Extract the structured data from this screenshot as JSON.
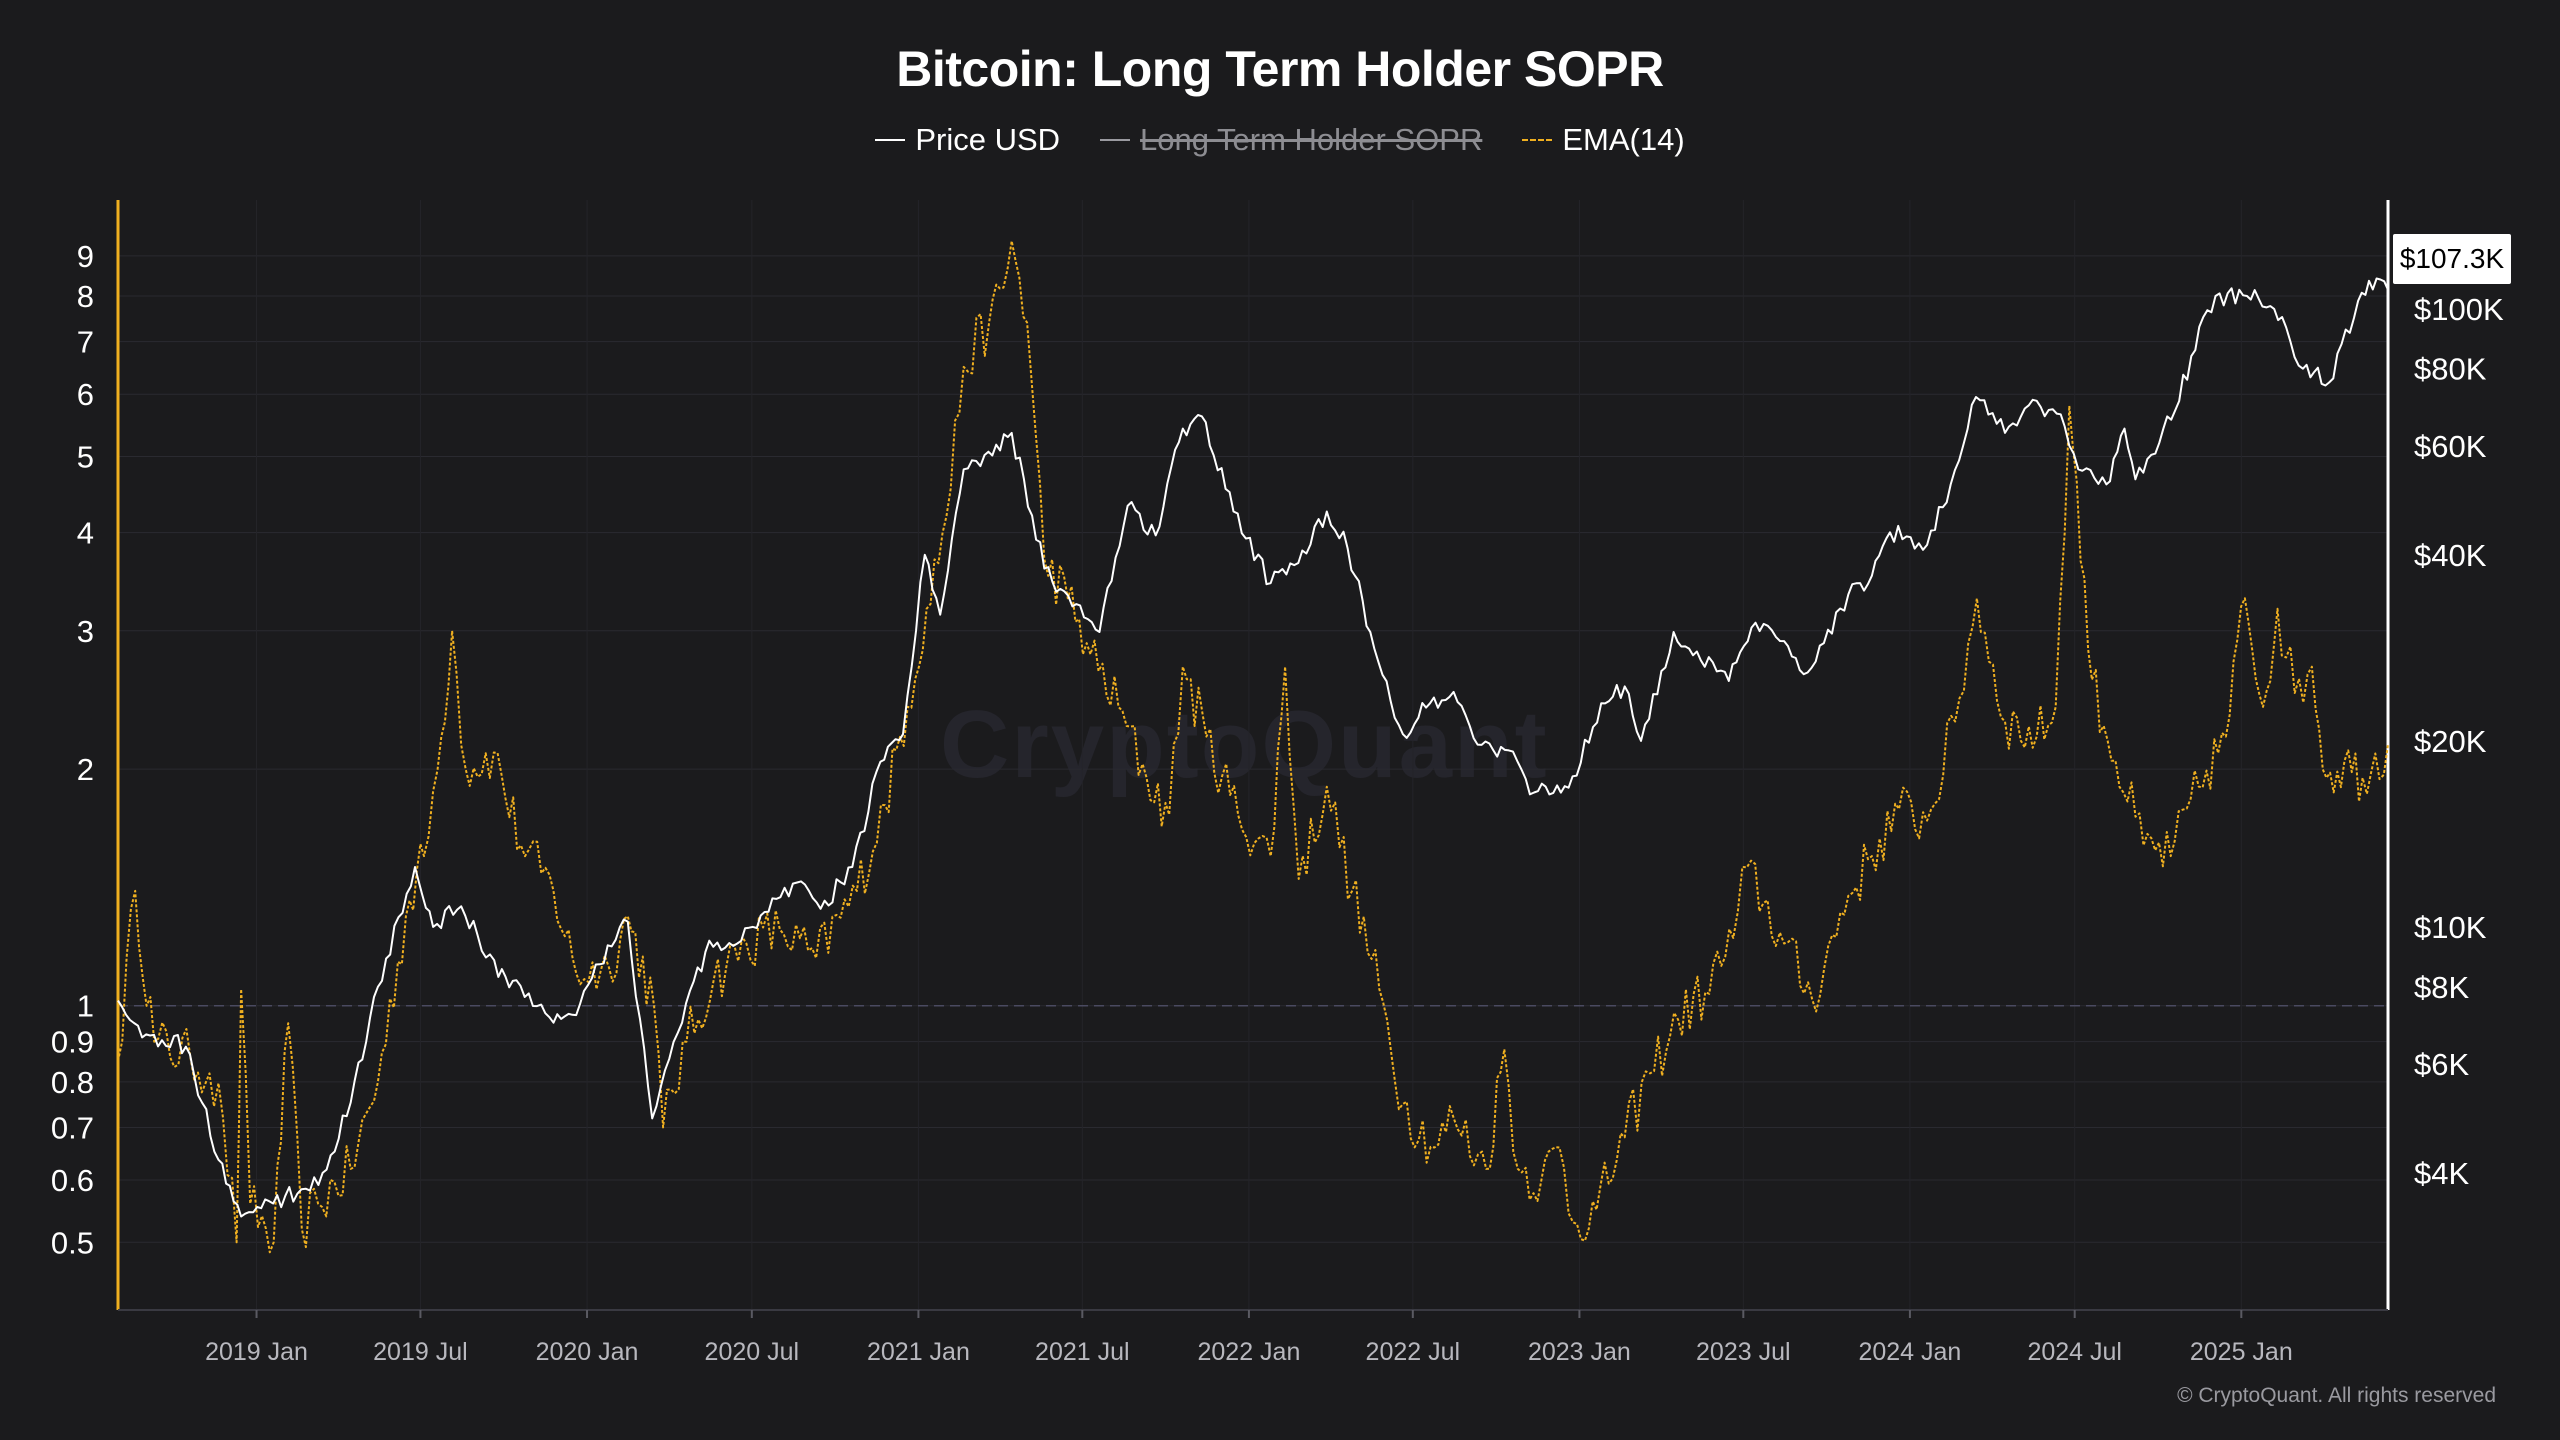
{
  "chart_data": {
    "type": "line",
    "title": "Bitcoin: Long Term Holder SOPR",
    "legend_placement": "top-center",
    "legend": [
      {
        "name": "Price USD",
        "color": "#ffffff",
        "enabled": true
      },
      {
        "name": "Long Term Holder SOPR",
        "color": "#9a9aa0",
        "enabled": false
      },
      {
        "name": "EMA(14)",
        "color": "#f0b020",
        "enabled": true
      }
    ],
    "x_ticks": [
      "2019 Jan",
      "2019 Jul",
      "2020 Jan",
      "2020 Jul",
      "2021 Jan",
      "2021 Jul",
      "2022 Jan",
      "2022 Jul",
      "2023 Jan",
      "2023 Jul",
      "2024 Jan",
      "2024 Jul",
      "2025 Jan"
    ],
    "x_range": [
      "2018-08-01",
      "2025-06-12"
    ],
    "y_left": {
      "scale": "log",
      "range": [
        0.41,
        10.6
      ],
      "ticks": [
        9,
        8,
        7,
        6,
        5,
        4,
        3,
        2,
        1,
        0.9,
        0.8,
        0.7,
        0.6,
        0.5
      ],
      "reference_line": 1
    },
    "y_right": {
      "scale": "log",
      "range": [
        2400,
        150000
      ],
      "ticks": [
        {
          "value": 100000,
          "label": "$100K"
        },
        {
          "value": 80000,
          "label": "$80K"
        },
        {
          "value": 60000,
          "label": "$60K"
        },
        {
          "value": 40000,
          "label": "$40K"
        },
        {
          "value": 20000,
          "label": "$20K"
        },
        {
          "value": 10000,
          "label": "$10K"
        },
        {
          "value": 8000,
          "label": "$8K"
        },
        {
          "value": 6000,
          "label": "$6K"
        },
        {
          "value": 4000,
          "label": "$4K"
        }
      ],
      "current_label": "$107.3K"
    },
    "grid": true,
    "series": [
      {
        "name": "Price USD",
        "axis": "right",
        "points": [
          [
            "2018-08-01",
            7600
          ],
          [
            "2018-09-01",
            6700
          ],
          [
            "2018-10-15",
            6400
          ],
          [
            "2018-11-20",
            4200
          ],
          [
            "2018-12-15",
            3400
          ],
          [
            "2019-01-15",
            3600
          ],
          [
            "2019-02-15",
            3700
          ],
          [
            "2019-03-15",
            4000
          ],
          [
            "2019-04-15",
            5200
          ],
          [
            "2019-05-15",
            8000
          ],
          [
            "2019-06-25",
            12500
          ],
          [
            "2019-07-15",
            10000
          ],
          [
            "2019-08-15",
            10800
          ],
          [
            "2019-09-25",
            8300
          ],
          [
            "2019-10-15",
            8200
          ],
          [
            "2019-11-25",
            7000
          ],
          [
            "2019-12-20",
            7200
          ],
          [
            "2020-01-15",
            8700
          ],
          [
            "2020-02-15",
            10200
          ],
          [
            "2020-03-13",
            4900
          ],
          [
            "2020-04-15",
            7000
          ],
          [
            "2020-05-15",
            9500
          ],
          [
            "2020-06-15",
            9400
          ],
          [
            "2020-07-28",
            11100
          ],
          [
            "2020-08-20",
            11800
          ],
          [
            "2020-09-15",
            10700
          ],
          [
            "2020-10-20",
            12500
          ],
          [
            "2020-11-20",
            18500
          ],
          [
            "2020-12-15",
            20500
          ],
          [
            "2021-01-08",
            40000
          ],
          [
            "2021-01-25",
            32000
          ],
          [
            "2021-02-20",
            55000
          ],
          [
            "2021-03-15",
            58000
          ],
          [
            "2021-04-14",
            63000
          ],
          [
            "2021-05-20",
            38000
          ],
          [
            "2021-06-20",
            33000
          ],
          [
            "2021-07-20",
            30000
          ],
          [
            "2021-08-20",
            48000
          ],
          [
            "2021-09-20",
            43000
          ],
          [
            "2021-10-20",
            64000
          ],
          [
            "2021-11-10",
            67000
          ],
          [
            "2021-12-15",
            47000
          ],
          [
            "2022-01-25",
            36000
          ],
          [
            "2022-02-20",
            38500
          ],
          [
            "2022-03-28",
            47000
          ],
          [
            "2022-04-20",
            41000
          ],
          [
            "2022-05-15",
            30000
          ],
          [
            "2022-06-20",
            20500
          ],
          [
            "2022-07-20",
            23000
          ],
          [
            "2022-08-15",
            24000
          ],
          [
            "2022-09-15",
            19700
          ],
          [
            "2022-10-15",
            19300
          ],
          [
            "2022-11-12",
            16500
          ],
          [
            "2022-12-20",
            16800
          ],
          [
            "2023-01-25",
            23000
          ],
          [
            "2023-02-20",
            24500
          ],
          [
            "2023-03-10",
            20000
          ],
          [
            "2023-04-15",
            30000
          ],
          [
            "2023-05-15",
            27000
          ],
          [
            "2023-06-15",
            25000
          ],
          [
            "2023-07-10",
            30500
          ],
          [
            "2023-08-15",
            29000
          ],
          [
            "2023-09-10",
            25800
          ],
          [
            "2023-10-25",
            34500
          ],
          [
            "2023-11-20",
            37000
          ],
          [
            "2023-12-10",
            43500
          ],
          [
            "2024-01-20",
            41500
          ],
          [
            "2024-02-15",
            52000
          ],
          [
            "2024-03-14",
            72000
          ],
          [
            "2024-04-15",
            63000
          ],
          [
            "2024-05-20",
            71000
          ],
          [
            "2024-06-20",
            64500
          ],
          [
            "2024-07-05",
            55000
          ],
          [
            "2024-08-05",
            52000
          ],
          [
            "2024-08-25",
            64000
          ],
          [
            "2024-09-06",
            53000
          ],
          [
            "2024-10-20",
            68500
          ],
          [
            "2024-11-20",
            97000
          ],
          [
            "2024-12-17",
            106000
          ],
          [
            "2025-01-20",
            104000
          ],
          [
            "2025-02-15",
            97000
          ],
          [
            "2025-03-10",
            80000
          ],
          [
            "2025-04-08",
            76000
          ],
          [
            "2025-05-10",
            103000
          ],
          [
            "2025-05-22",
            111000
          ],
          [
            "2025-06-12",
            107300
          ]
        ]
      },
      {
        "name": "EMA(14)",
        "axis": "left",
        "points": [
          [
            "2018-08-01",
            0.85
          ],
          [
            "2018-08-20",
            1.4
          ],
          [
            "2018-09-10",
            0.9
          ],
          [
            "2018-10-20",
            0.86
          ],
          [
            "2018-11-10",
            0.82
          ],
          [
            "2018-11-25",
            0.72
          ],
          [
            "2018-12-10",
            0.5
          ],
          [
            "2018-12-15",
            1.05
          ],
          [
            "2018-12-25",
            0.56
          ],
          [
            "2019-01-20",
            0.5
          ],
          [
            "2019-02-05",
            0.95
          ],
          [
            "2019-02-20",
            0.52
          ],
          [
            "2019-03-10",
            0.56
          ],
          [
            "2019-04-15",
            0.62
          ],
          [
            "2019-05-15",
            0.8
          ],
          [
            "2019-06-15",
            1.3
          ],
          [
            "2019-07-05",
            1.55
          ],
          [
            "2019-07-20",
            2.0
          ],
          [
            "2019-08-05",
            3.0
          ],
          [
            "2019-08-20",
            2.0
          ],
          [
            "2019-09-20",
            2.1
          ],
          [
            "2019-10-20",
            1.6
          ],
          [
            "2019-11-25",
            1.4
          ],
          [
            "2019-12-20",
            1.1
          ],
          [
            "2020-01-25",
            1.12
          ],
          [
            "2020-02-15",
            1.3
          ],
          [
            "2020-03-15",
            1.0
          ],
          [
            "2020-03-25",
            0.7
          ],
          [
            "2020-04-20",
            0.9
          ],
          [
            "2020-05-20",
            1.08
          ],
          [
            "2020-06-25",
            1.2
          ],
          [
            "2020-08-01",
            1.25
          ],
          [
            "2020-09-10",
            1.15
          ],
          [
            "2020-10-25",
            1.4
          ],
          [
            "2020-11-25",
            1.8
          ],
          [
            "2020-12-20",
            2.4
          ],
          [
            "2021-01-10",
            3.2
          ],
          [
            "2021-02-01",
            4.2
          ],
          [
            "2021-02-20",
            6.5
          ],
          [
            "2021-03-20",
            7.4
          ],
          [
            "2021-04-05",
            8.2
          ],
          [
            "2021-04-14",
            9.4
          ],
          [
            "2021-05-01",
            7.4
          ],
          [
            "2021-05-20",
            3.7
          ],
          [
            "2021-06-15",
            3.3
          ],
          [
            "2021-07-10",
            2.8
          ],
          [
            "2021-08-10",
            2.4
          ],
          [
            "2021-09-10",
            1.95
          ],
          [
            "2021-10-05",
            1.75
          ],
          [
            "2021-10-20",
            2.7
          ],
          [
            "2021-11-15",
            2.2
          ],
          [
            "2021-12-20",
            1.75
          ],
          [
            "2022-01-25",
            1.55
          ],
          [
            "2022-02-10",
            2.7
          ],
          [
            "2022-02-25",
            1.45
          ],
          [
            "2022-03-28",
            1.9
          ],
          [
            "2022-04-25",
            1.4
          ],
          [
            "2022-05-25",
            1.05
          ],
          [
            "2022-06-20",
            0.75
          ],
          [
            "2022-07-25",
            0.66
          ],
          [
            "2022-08-15",
            0.72
          ],
          [
            "2022-09-20",
            0.62
          ],
          [
            "2022-10-10",
            0.88
          ],
          [
            "2022-10-25",
            0.62
          ],
          [
            "2022-11-20",
            0.6
          ],
          [
            "2022-12-10",
            0.66
          ],
          [
            "2022-12-25",
            0.53
          ],
          [
            "2023-01-20",
            0.55
          ],
          [
            "2023-02-20",
            0.68
          ],
          [
            "2023-03-20",
            0.82
          ],
          [
            "2023-04-20",
            0.96
          ],
          [
            "2023-05-20",
            1.04
          ],
          [
            "2023-06-20",
            1.22
          ],
          [
            "2023-07-05",
            1.5
          ],
          [
            "2023-08-15",
            1.2
          ],
          [
            "2023-09-15",
            1.02
          ],
          [
            "2023-10-25",
            1.38
          ],
          [
            "2023-11-20",
            1.55
          ],
          [
            "2023-12-20",
            1.78
          ],
          [
            "2024-01-20",
            1.72
          ],
          [
            "2024-02-20",
            2.3
          ],
          [
            "2024-03-15",
            3.3
          ],
          [
            "2024-04-15",
            2.3
          ],
          [
            "2024-05-20",
            2.2
          ],
          [
            "2024-06-10",
            2.4
          ],
          [
            "2024-06-25",
            5.8
          ],
          [
            "2024-07-20",
            2.6
          ],
          [
            "2024-08-15",
            2.05
          ],
          [
            "2024-09-15",
            1.6
          ],
          [
            "2024-10-15",
            1.55
          ],
          [
            "2024-11-15",
            1.9
          ],
          [
            "2024-12-15",
            2.2
          ],
          [
            "2025-01-05",
            3.3
          ],
          [
            "2025-01-25",
            2.4
          ],
          [
            "2025-02-10",
            3.2
          ],
          [
            "2025-03-01",
            2.5
          ],
          [
            "2025-03-20",
            2.7
          ],
          [
            "2025-04-05",
            1.95
          ],
          [
            "2025-04-25",
            2.05
          ],
          [
            "2025-05-15",
            1.95
          ],
          [
            "2025-06-12",
            2.15
          ]
        ]
      }
    ]
  },
  "watermark": "CryptoQuant",
  "copyright": "© CryptoQuant. All rights reserved"
}
